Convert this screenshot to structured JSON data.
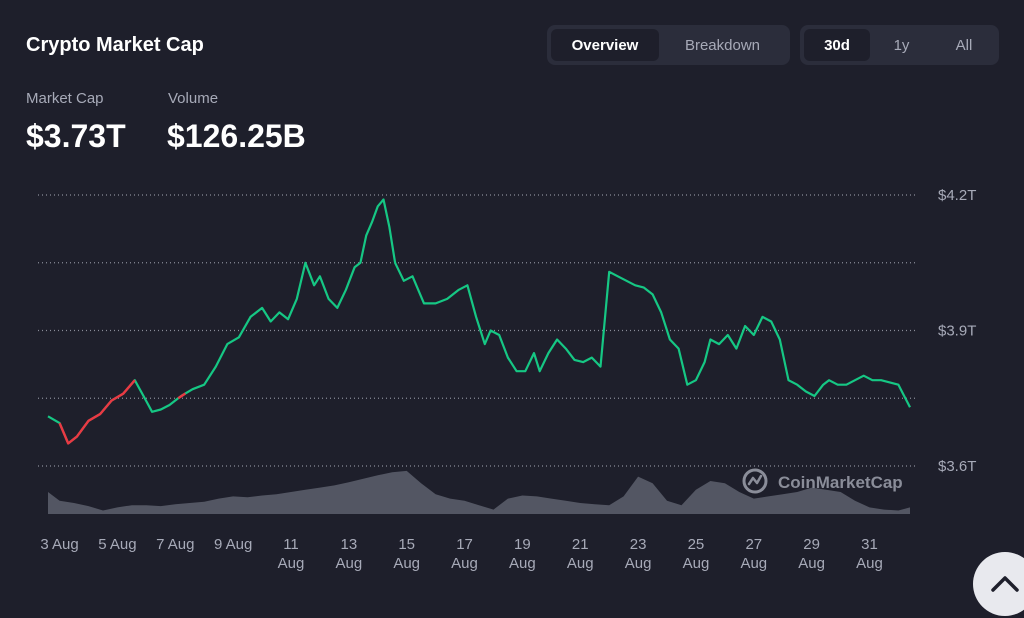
{
  "header": {
    "title": "Crypto Market Cap",
    "view_tabs": [
      "Overview",
      "Breakdown"
    ],
    "active_view": "Overview",
    "range_tabs": [
      "30d",
      "1y",
      "All"
    ],
    "active_range": "30d"
  },
  "stats": {
    "market_cap_label": "Market Cap",
    "market_cap_value": "$3.73T",
    "volume_label": "Volume",
    "volume_value": "$126.25B"
  },
  "watermark": "CoinMarketCap",
  "colors": {
    "background": "#1e1f2b",
    "up": "#16c784",
    "down": "#ea3943",
    "grid": "#8a8d99",
    "volume": "#5d606d"
  },
  "chart_data": {
    "type": "line",
    "y_tick_labels": [
      "$4.2T",
      "$3.9T",
      "$3.6T"
    ],
    "y_ticks_trillions": [
      4.2,
      3.9,
      3.6
    ],
    "y_gridlines_trillions": [
      4.2,
      4.05,
      3.9,
      3.75,
      3.6
    ],
    "ylim_trillions": [
      3.6,
      4.2
    ],
    "x_tick_labels": [
      "3 Aug",
      "5 Aug",
      "7 Aug",
      "9 Aug",
      "11 Aug",
      "13 Aug",
      "15 Aug",
      "17 Aug",
      "19 Aug",
      "21 Aug",
      "23 Aug",
      "25 Aug",
      "27 Aug",
      "29 Aug",
      "31 Aug"
    ],
    "x_range_days": [
      2.6,
      32.4
    ],
    "grid": true,
    "series": [
      {
        "values_unit": "trillion USD",
        "x_day": [
          2.6,
          3.0,
          3.3,
          3.6,
          4.0,
          4.4,
          4.8,
          5.2,
          5.6,
          5.9,
          6.2,
          6.5,
          6.8,
          7.2,
          7.6,
          8.0,
          8.4,
          8.8,
          9.2,
          9.6,
          10.0,
          10.3,
          10.6,
          10.9,
          11.2,
          11.5,
          11.8,
          12.0,
          12.3,
          12.6,
          12.9,
          13.2,
          13.4,
          13.6,
          13.8,
          14.0,
          14.2,
          14.4,
          14.6,
          14.9,
          15.2,
          15.6,
          16.0,
          16.4,
          16.8,
          17.1,
          17.4,
          17.7,
          17.9,
          18.2,
          18.5,
          18.8,
          19.1,
          19.4,
          19.6,
          19.9,
          20.2,
          20.5,
          20.8,
          21.1,
          21.4,
          21.7,
          22.0,
          22.3,
          22.6,
          22.9,
          23.2,
          23.5,
          23.8,
          24.1,
          24.4,
          24.7,
          25.0,
          25.3,
          25.5,
          25.8,
          26.1,
          26.4,
          26.7,
          27.0,
          27.3,
          27.6,
          27.9,
          28.2,
          28.5,
          28.8,
          29.1,
          29.4,
          29.6,
          29.9,
          30.2,
          30.5,
          30.8,
          31.1,
          31.4,
          31.7,
          32.0,
          32.4
        ],
        "values": [
          3.71,
          3.695,
          3.65,
          3.665,
          3.7,
          3.715,
          3.745,
          3.76,
          3.79,
          3.755,
          3.72,
          3.725,
          3.735,
          3.755,
          3.77,
          3.78,
          3.82,
          3.87,
          3.885,
          3.93,
          3.95,
          3.92,
          3.94,
          3.925,
          3.97,
          4.05,
          4.0,
          4.02,
          3.97,
          3.95,
          3.99,
          4.04,
          4.05,
          4.11,
          4.14,
          4.175,
          4.19,
          4.13,
          4.05,
          4.01,
          4.02,
          3.96,
          3.96,
          3.97,
          3.99,
          4.0,
          3.93,
          3.87,
          3.9,
          3.89,
          3.84,
          3.81,
          3.81,
          3.85,
          3.81,
          3.85,
          3.88,
          3.86,
          3.835,
          3.83,
          3.84,
          3.82,
          4.03,
          4.02,
          4.01,
          4.0,
          3.995,
          3.98,
          3.94,
          3.88,
          3.86,
          3.78,
          3.79,
          3.83,
          3.88,
          3.87,
          3.89,
          3.86,
          3.91,
          3.89,
          3.93,
          3.92,
          3.88,
          3.79,
          3.78,
          3.765,
          3.755,
          3.78,
          3.79,
          3.78,
          3.78,
          3.79,
          3.8,
          3.79,
          3.79,
          3.785,
          3.78,
          3.73
        ],
        "down_segment_x_day": [
          3.0,
          5.7
        ],
        "down_segment_2_x_day": [
          7.1,
          7.35
        ]
      }
    ],
    "volume_x_day": [
      2.6,
      3.0,
      3.5,
      4.0,
      4.5,
      5.0,
      5.5,
      6.0,
      6.5,
      7.0,
      7.5,
      8.0,
      8.5,
      9.0,
      9.5,
      10.0,
      10.5,
      11.0,
      11.5,
      12.0,
      12.5,
      13.0,
      13.5,
      14.0,
      14.5,
      15.0,
      15.5,
      16.0,
      16.5,
      17.0,
      17.5,
      18.0,
      18.5,
      19.0,
      19.5,
      20.0,
      20.5,
      21.0,
      21.5,
      22.0,
      22.5,
      23.0,
      23.5,
      24.0,
      24.5,
      25.0,
      25.5,
      26.0,
      26.5,
      27.0,
      27.5,
      28.0,
      28.5,
      29.0,
      29.5,
      30.0,
      30.5,
      31.0,
      31.5,
      32.0,
      32.4
    ],
    "volume_relative": [
      0.5,
      0.3,
      0.25,
      0.18,
      0.08,
      0.15,
      0.2,
      0.2,
      0.18,
      0.22,
      0.25,
      0.28,
      0.35,
      0.4,
      0.38,
      0.42,
      0.45,
      0.5,
      0.55,
      0.6,
      0.65,
      0.72,
      0.8,
      0.88,
      0.95,
      0.98,
      0.7,
      0.45,
      0.35,
      0.3,
      0.2,
      0.1,
      0.35,
      0.42,
      0.4,
      0.35,
      0.3,
      0.25,
      0.22,
      0.2,
      0.4,
      0.85,
      0.7,
      0.3,
      0.2,
      0.55,
      0.75,
      0.7,
      0.5,
      0.35,
      0.4,
      0.45,
      0.5,
      0.6,
      0.55,
      0.5,
      0.3,
      0.15,
      0.1,
      0.08,
      0.15
    ]
  }
}
